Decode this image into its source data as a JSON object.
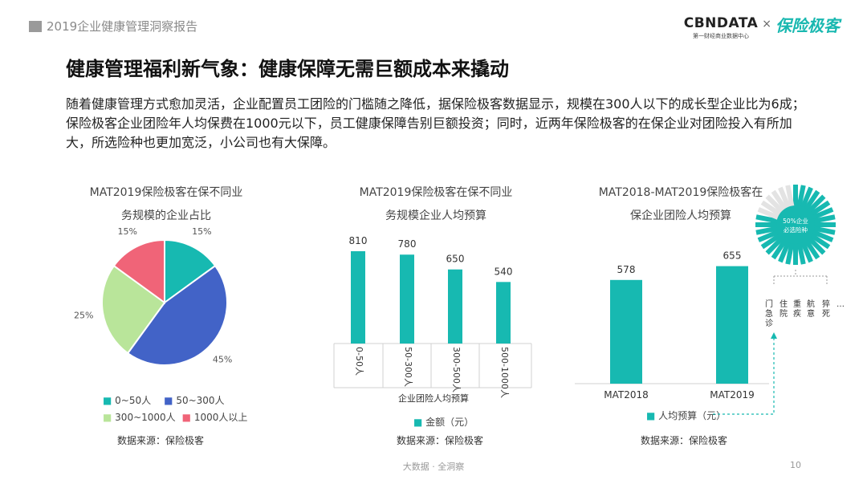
{
  "header": {
    "report_title": "2019企业健康管理洞察报告"
  },
  "brand": {
    "cbndata": "CBNDATA",
    "cbndata_sub": "第一财经商业数据中心",
    "times": "×",
    "partner": "保险极客"
  },
  "main": {
    "title": "健康管理福利新气象：健康保障无需巨额成本来撬动",
    "intro": "随着健康管理方式愈加灵活，企业配置员工团险的门槛随之降低，据保险极客数据显示，规模在300人以下的成长型企业比为6成；保险极客企业团险年人均保费在1000元以下，员工健康保障告别巨额投资；同时，近两年保险极客的在保企业对团险投入有所加大，所选险种也更加宽泛，小公司也有大保障。"
  },
  "colors": {
    "teal": "#17b9b1",
    "blue": "#4263c7",
    "green": "#b9e59a",
    "pink": "#f06478"
  },
  "chart_data": [
    {
      "type": "pie",
      "title_lines": [
        "MAT2019保险极客在保不同业",
        "务规模的企业占比"
      ],
      "categories": [
        "0~50人",
        "50~300人",
        "300~1000人",
        "1000人以上"
      ],
      "values": [
        15,
        45,
        25,
        15
      ],
      "labels": [
        "15%",
        "45%",
        "25%",
        "15%"
      ],
      "colors": [
        "#17b9b1",
        "#4263c7",
        "#b9e59a",
        "#f06478"
      ],
      "source": "数据来源：保险极客"
    },
    {
      "type": "bar",
      "title_lines": [
        "MAT2019保险极客在保不同业",
        "务规模企业人均预算"
      ],
      "categories": [
        "0-50人",
        "50-300人",
        "300-500人",
        "500-1000人"
      ],
      "values": [
        810,
        780,
        650,
        540
      ],
      "xlabel": "企业团险人均预算",
      "series": [
        {
          "name": "金额（元）",
          "values": [
            810,
            780,
            650,
            540
          ]
        }
      ],
      "ylim": [
        0,
        1000
      ],
      "source": "数据来源：保险极客"
    },
    {
      "type": "bar",
      "title_lines": [
        "MAT2018-MAT2019保险极客在",
        "保企业团险人均预算"
      ],
      "categories": [
        "MAT2018",
        "MAT2019"
      ],
      "values": [
        578,
        655
      ],
      "series": [
        {
          "name": "人均预算（元）",
          "values": [
            578,
            655
          ]
        }
      ],
      "ylim": [
        0,
        850
      ],
      "source": "数据来源：保险极客"
    }
  ],
  "callout": {
    "gauge_text_1": "50%企业",
    "gauge_text_2": "必选险种",
    "items": [
      "门急诊",
      "住院",
      "重疾",
      "航意",
      "猝死",
      "…"
    ]
  },
  "footer": {
    "center": "大数据 · 全洞察",
    "page": "10"
  }
}
